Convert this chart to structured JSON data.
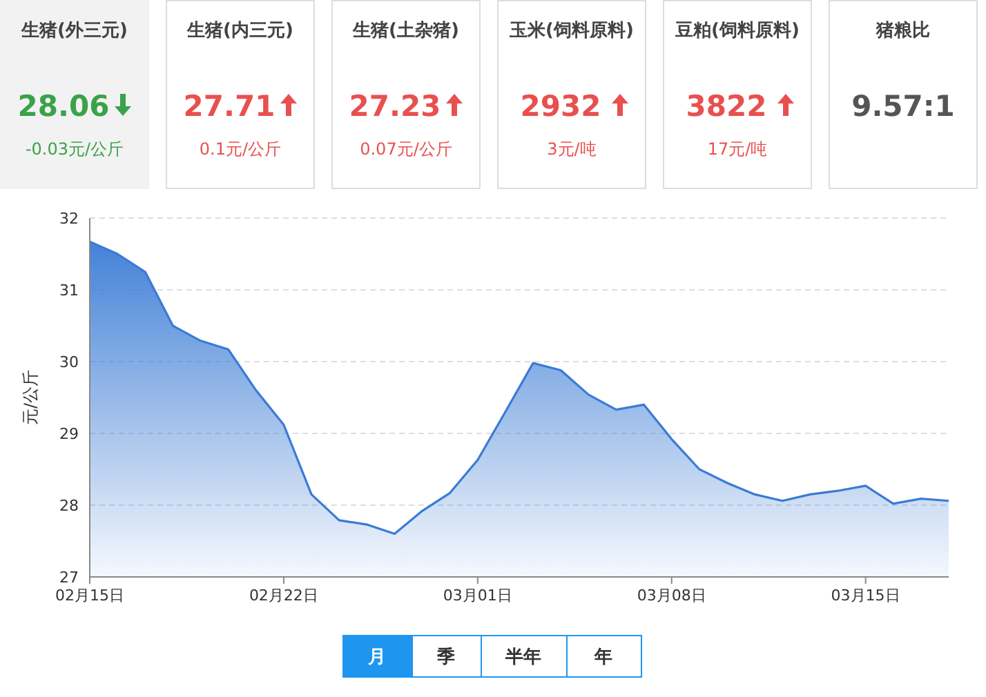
{
  "chart_data": [
    {
      "type": "other",
      "categories": [
        "生猪(外三元)",
        "生猪(内三元)",
        "生猪(土杂猪)",
        "玉米(饲料原料)",
        "豆粕(饲料原料)",
        "猪粮比"
      ],
      "annotations": [
        "28.06",
        "-0.03元/公斤",
        "27.71",
        "0.1元/公斤",
        "27.23",
        "0.07元/公斤",
        "2932",
        "3元/吨",
        "3822",
        "17元/吨",
        "9.57:1"
      ]
    },
    {
      "type": "area",
      "ylabel": "元/公斤",
      "color": "#3a7bd5",
      "grid": "y",
      "x": [
        "--02-15",
        "--02-16",
        "--02-17",
        "--02-18",
        "--02-19",
        "--02-20",
        "--02-21",
        "--02-22",
        "--02-23",
        "--02-24",
        "--02-25",
        "--02-26",
        "--02-27",
        "--02-28",
        "--03-01",
        "--03-02",
        "--03-03",
        "--03-04",
        "--03-05",
        "--03-06",
        "--03-07",
        "--03-08",
        "--03-09",
        "--03-10",
        "--03-11",
        "--03-12",
        "--03-13",
        "--03-14",
        "--03-15",
        "--03-16",
        "--03-17",
        "--03-18"
      ],
      "values": [
        31.67,
        31.5,
        31.25,
        30.5,
        30.29,
        30.17,
        29.6,
        29.12,
        28.15,
        27.79,
        27.73,
        27.6,
        27.92,
        28.17,
        28.63,
        29.3,
        29.98,
        29.88,
        29.54,
        29.33,
        29.4,
        28.92,
        28.5,
        28.31,
        28.15,
        28.06,
        28.15,
        28.2,
        28.27,
        28.02,
        28.09,
        28.06
      ],
      "xlim": [
        "--02-15",
        "--03-18"
      ],
      "xticks": [
        {
          "value": "--02-15",
          "label": "02月15日"
        },
        {
          "value": "--02-22",
          "label": "02月22日"
        },
        {
          "value": "--03-01",
          "label": "03月01日"
        },
        {
          "value": "--03-08",
          "label": "03月08日"
        },
        {
          "value": "--03-15",
          "label": "03月15日"
        }
      ],
      "ylim": [
        27,
        32
      ],
      "yticks": [
        27,
        28,
        29,
        30,
        31,
        32
      ],
      "annotations": [
        "月",
        "季",
        "半年",
        "年"
      ]
    }
  ]
}
